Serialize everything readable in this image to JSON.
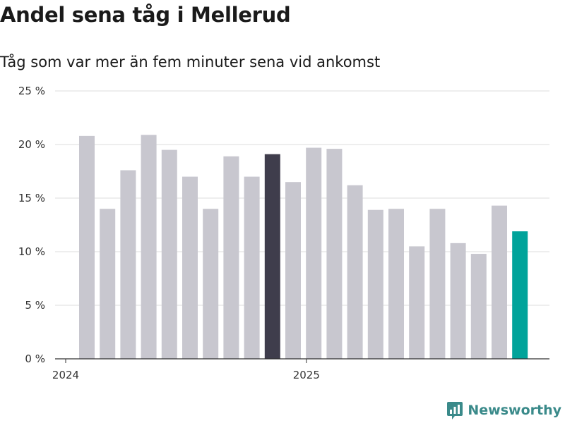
{
  "chart_data": {
    "type": "bar",
    "title": "Andel sena tåg i Mellerud",
    "subtitle": "Tåg som var mer än fem minuter sena vid ankomst",
    "xlabel": "",
    "ylabel": "",
    "ylim": [
      0,
      25
    ],
    "yticks": [
      0,
      5,
      10,
      15,
      20,
      25
    ],
    "ytick_labels": [
      "0 %",
      "5 %",
      "10 %",
      "15 %",
      "20 %",
      "25 %"
    ],
    "xtick_labels": [
      {
        "label": "2024",
        "index": 0
      },
      {
        "label": "2025",
        "index": 12
      }
    ],
    "categories": [
      "2024-02",
      "2024-03",
      "2024-04",
      "2024-05",
      "2024-06",
      "2024-07",
      "2024-08",
      "2024-09",
      "2024-10",
      "2024-11",
      "2024-12",
      "2025-01",
      "2025-02",
      "2025-03",
      "2025-04",
      "2025-05",
      "2025-06",
      "2025-07",
      "2025-08",
      "2025-09",
      "2025-10",
      "2025-11"
    ],
    "values": [
      20.8,
      14.0,
      17.6,
      20.9,
      19.5,
      17.0,
      14.0,
      18.9,
      17.0,
      19.1,
      16.5,
      19.7,
      19.6,
      16.2,
      13.9,
      14.0,
      10.5,
      14.0,
      10.8,
      9.8,
      14.3,
      11.9
    ],
    "highlight": [
      {
        "index": 9,
        "color": "#3f3d4c"
      },
      {
        "index": 21,
        "color": "#00a39a"
      }
    ],
    "colors": {
      "bar": "#c8c7cf",
      "grid": "#dedede",
      "axis": "#333333"
    },
    "grid": true
  },
  "brand": {
    "name": "Newsworthy",
    "icon": "newsworthy-logo-icon",
    "color": "#3a8a8a"
  }
}
